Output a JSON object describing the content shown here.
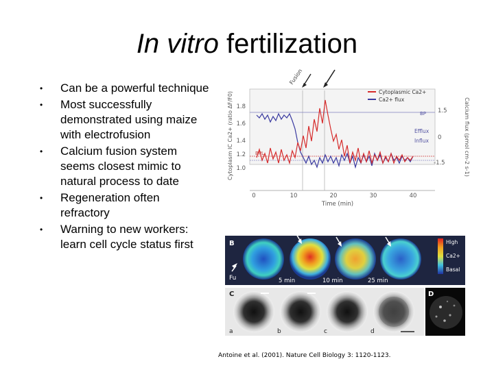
{
  "slide": {
    "title_italic": "In vitro",
    "title_rest": " fertilization",
    "bullets": [
      "Can be a powerful technique",
      "Most successfully demonstrated using maize with electrofusion",
      "Calcium fusion system seems closest mimic to natural process to date",
      "Regeneration often refractory",
      "Warning to new workers: learn cell cycle status first"
    ],
    "citation": "Antoine et al. (2001). Nature Cell Biology 3: 1120-1123."
  },
  "figure": {
    "panel_a": {
      "fusion_label": "Fusion",
      "legend": [
        "Cytoplasmic Ca2+",
        "Ca2+ flux"
      ],
      "legend_colors": [
        "#d62b2b",
        "#3a3aa0"
      ],
      "ylabel_left": "Cytoplasm IC Ca2+ (ratio ΔF/F0)",
      "ylabel_right": "Calcium flux (pmol cm-2 s-1)",
      "xlabel": "Time (min)",
      "y_ticks_left": [
        "1.8",
        "1.6",
        "1.4",
        "1.2",
        "1.0"
      ],
      "y_ticks_right": [
        "1.5",
        "0",
        "-1.5"
      ],
      "x_ticks": [
        "0",
        "10",
        "20",
        "30",
        "40"
      ],
      "bp_label": "BP",
      "bpl_label": "BPL",
      "efflux_label": "Efflux",
      "influx_label": "Influx"
    },
    "panel_b": {
      "letter": "B",
      "fu_label": "Fu",
      "times": [
        "5 min",
        "10 min",
        "25 min"
      ],
      "scale_high": "High",
      "scale_mid": "Ca2+",
      "scale_low": "Basal"
    },
    "panel_c": {
      "letter": "C",
      "sublabels": [
        "a",
        "b",
        "c",
        "d"
      ]
    },
    "panel_d": {
      "letter": "D"
    }
  }
}
